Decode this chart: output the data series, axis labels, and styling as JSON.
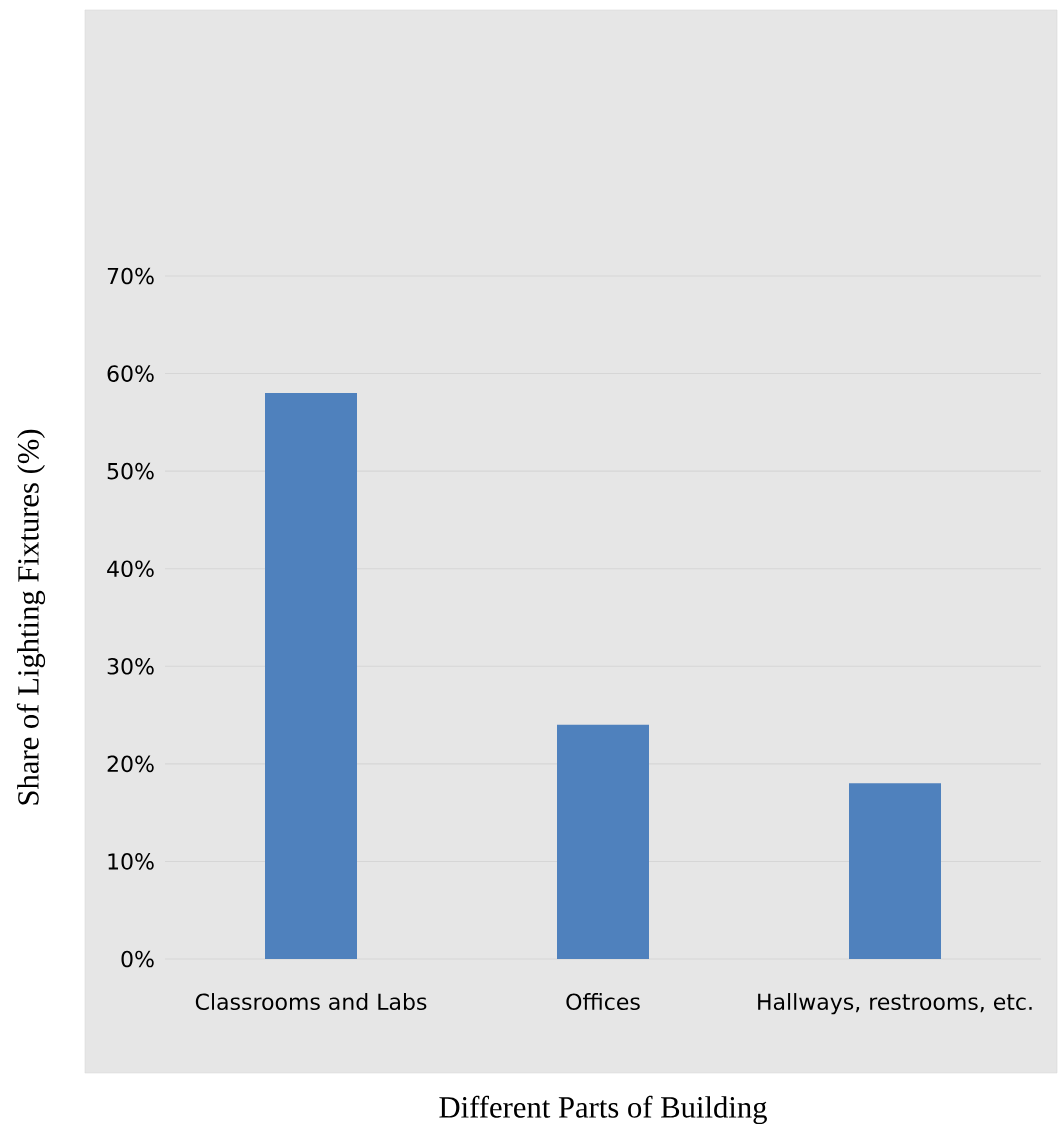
{
  "chart_data": {
    "type": "bar",
    "xlabel": "Different Parts of Building",
    "ylabel": "Share of Lighting Fixtures (%)",
    "categories": [
      "Classrooms and Labs",
      "Offices",
      "Hallways, restrooms, etc."
    ],
    "values": [
      58,
      24,
      18
    ],
    "color": "#4f81bd",
    "ylim": [
      0,
      70
    ],
    "yticks": [
      {
        "value": 0,
        "label": "0%"
      },
      {
        "value": 10,
        "label": "10%"
      },
      {
        "value": 20,
        "label": "20%"
      },
      {
        "value": 30,
        "label": "30%"
      },
      {
        "value": 40,
        "label": "40%"
      },
      {
        "value": 50,
        "label": "50%"
      },
      {
        "value": 60,
        "label": "60%"
      },
      {
        "value": 70,
        "label": "70%"
      }
    ],
    "grid": "y"
  }
}
